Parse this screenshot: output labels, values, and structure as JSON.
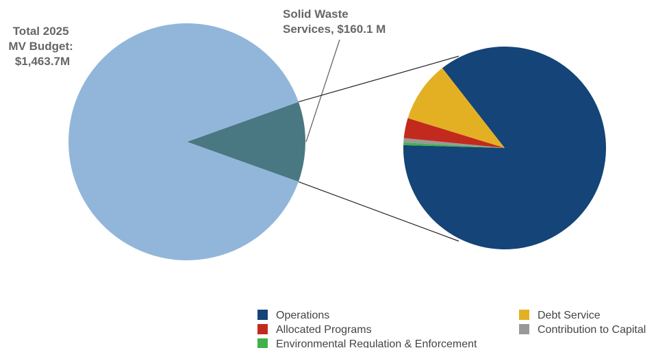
{
  "chart_data": [
    {
      "type": "pie",
      "title_lines": [
        "Total 2025",
        "MV Budget:",
        "$1,463.7M"
      ],
      "total": 1463.7,
      "unit": "$M",
      "slices": [
        {
          "label_lines": [
            "Solid Waste",
            "Services, $160.1 M"
          ],
          "value": 160.1,
          "color": "#4a7882"
        },
        {
          "value": 1303.6,
          "color": "#92b6da"
        }
      ]
    },
    {
      "type": "pie",
      "slices": [
        {
          "name": "Operations",
          "value": 86.0,
          "color": "#144478"
        },
        {
          "name": "Debt Service",
          "value": 9.7,
          "color": "#e3b024"
        },
        {
          "name": "Allocated Programs",
          "value": 3.2,
          "color": "#c22a1e"
        },
        {
          "name": "Contribution to Capital",
          "value": 0.7,
          "color": "#999999"
        },
        {
          "name": "Environmental Regulation & Enforcement",
          "value": 0.4,
          "color": "#3fb34a"
        }
      ]
    }
  ],
  "legend": {
    "items": [
      {
        "label": "Operations",
        "color": "#144478"
      },
      {
        "label": "Debt Service",
        "color": "#e3b024"
      },
      {
        "label": "Allocated Programs",
        "color": "#c22a1e"
      },
      {
        "label": "Contribution to Capital",
        "color": "#999999"
      },
      {
        "label": "Environmental Regulation & Enforcement",
        "color": "#3fb34a"
      }
    ]
  }
}
